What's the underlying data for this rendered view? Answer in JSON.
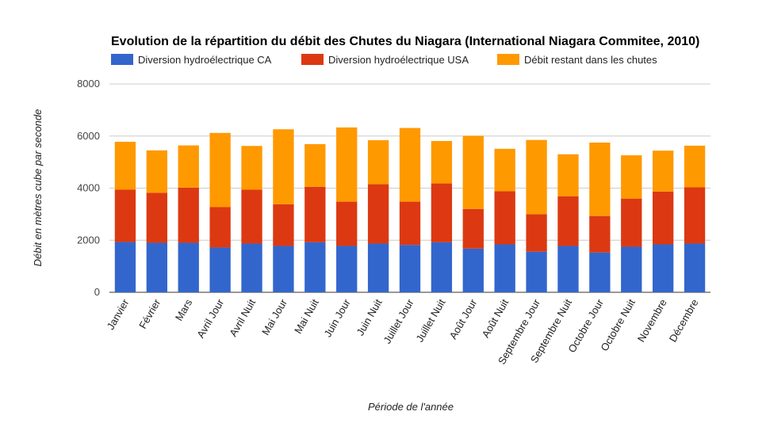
{
  "chart_data": {
    "type": "bar",
    "stacked": true,
    "title": "Evolution de la répartition du débit des Chutes du Niagara (International Niagara Commitee, 2010)",
    "xlabel": "Période de l'année",
    "ylabel": "Débit en mètres cube par seconde",
    "ylim": [
      0,
      8000
    ],
    "yticks": [
      0,
      2000,
      4000,
      6000,
      8000
    ],
    "grid": true,
    "legend_position": "top-left",
    "categories": [
      "Janvier",
      "Février",
      "Mars",
      "Avril Jour",
      "Avril Nuit",
      "Mai Jour",
      "Mai Nuit",
      "Juin Jour",
      "Juin Nuit",
      "Juillet Jour",
      "Juillet Nuit",
      "Août Jour",
      "Août Nuit",
      "Septembre Jour",
      "Septembre Nuit",
      "Octobre Jour",
      "Octobre Nuit",
      "Novembre",
      "Décembre"
    ],
    "series": [
      {
        "name": "Diversion hydroélectrique CA",
        "color": "#3366cc",
        "values": [
          1930,
          1900,
          1900,
          1720,
          1870,
          1780,
          1920,
          1780,
          1870,
          1820,
          1920,
          1680,
          1840,
          1560,
          1780,
          1530,
          1750,
          1840,
          1870
        ]
      },
      {
        "name": "Diversion hydroélectrique USA",
        "color": "#dc3912",
        "values": [
          2010,
          1920,
          2120,
          1550,
          2070,
          1600,
          2130,
          1700,
          2280,
          1660,
          2260,
          1520,
          2040,
          1440,
          1910,
          1400,
          1850,
          2030,
          2160
        ]
      },
      {
        "name": "Débit restant dans les chutes",
        "color": "#ff9900",
        "values": [
          1840,
          1630,
          1620,
          2850,
          1680,
          2880,
          1640,
          2850,
          1690,
          2830,
          1630,
          2810,
          1630,
          2850,
          1610,
          2820,
          1660,
          1570,
          1600
        ]
      }
    ]
  }
}
